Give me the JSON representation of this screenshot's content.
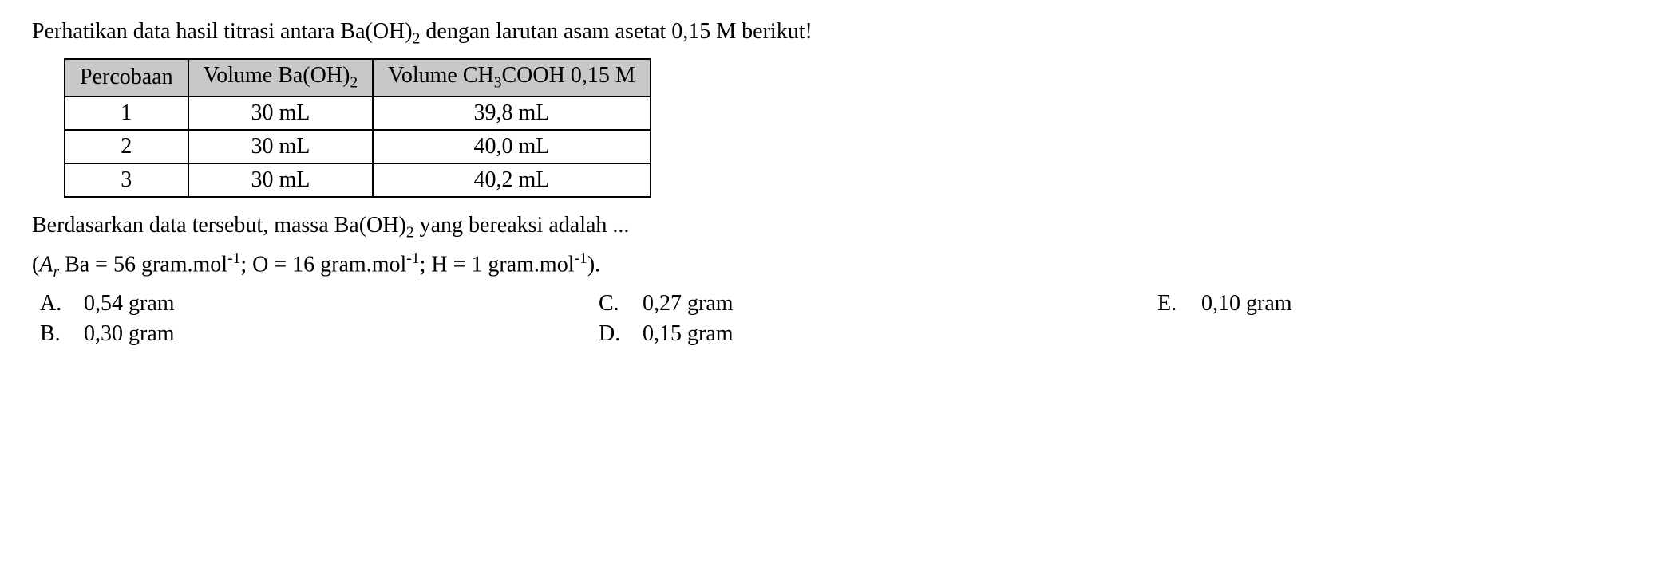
{
  "question": {
    "prefix": "Perhatikan data hasil titrasi antara Ba(OH)",
    "sub1": "2",
    "suffix": " dengan larutan asam asetat 0,15 M berikut!"
  },
  "table": {
    "headers": {
      "col1": "Percobaan",
      "col2_pre": "Volume Ba(OH)",
      "col2_sub": "2",
      "col3_pre": "Volume CH",
      "col3_sub": "3",
      "col3_mid": "COOH 0,15 M"
    },
    "rows": [
      {
        "n": "1",
        "v1": "30 mL",
        "v2": "39,8 mL"
      },
      {
        "n": "2",
        "v1": "30 mL",
        "v2": "40,0 mL"
      },
      {
        "n": "3",
        "v1": "30 mL",
        "v2": "40,2 mL"
      }
    ]
  },
  "followup": {
    "pre": "Berdasarkan data tersebut, massa Ba(OH)",
    "sub": "2",
    "post": " yang bereaksi adalah ..."
  },
  "subtext": {
    "open": "(",
    "Ar_A": "A",
    "Ar_r": "r",
    "ba": " Ba = 56 gram.mol",
    "neg1a": "-1",
    "sep1": "; O = 16 gram.mol",
    "neg1b": "-1",
    "sep2": "; H = 1 gram.mol",
    "neg1c": "-1",
    "close": ")."
  },
  "options": {
    "A": {
      "letter": "A.",
      "text": "0,54 gram"
    },
    "B": {
      "letter": "B.",
      "text": "0,30 gram"
    },
    "C": {
      "letter": "C.",
      "text": "0,27 gram"
    },
    "D": {
      "letter": "D.",
      "text": "0,15 gram"
    },
    "E": {
      "letter": "E.",
      "text": "0,10 gram"
    }
  }
}
